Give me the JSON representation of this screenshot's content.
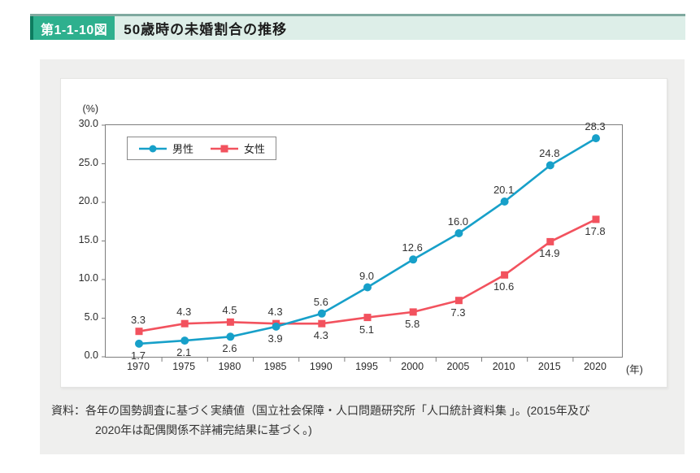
{
  "header": {
    "figure_number": "第1-1-10図",
    "title": "50歳時の未婚割合の推移",
    "badge_color": "#2eb08e",
    "badge_accent_color": "#0d7c60",
    "bar_bg_color": "#ddeee8",
    "bar_top_line_color": "#7fa99f"
  },
  "chart_data": {
    "type": "line",
    "title": "50歳時の未婚割合の推移",
    "y_unit": "(%)",
    "x_unit": "(年)",
    "ylim": [
      0,
      30
    ],
    "grid": false,
    "legend_position": "top-left",
    "y_ticks": [
      "30.0",
      "25.0",
      "20.0",
      "15.0",
      "10.0",
      "5.0",
      "0.0"
    ],
    "categories": [
      "1970",
      "1975",
      "1980",
      "1985",
      "1990",
      "1995",
      "2000",
      "2005",
      "2010",
      "2015",
      "2020"
    ],
    "series": [
      {
        "name": "男性",
        "color": "#17a0c9",
        "marker": "circle",
        "values": [
          1.7,
          2.1,
          2.6,
          3.9,
          5.6,
          9.0,
          12.6,
          16.0,
          20.1,
          24.8,
          28.3
        ],
        "label_pos": [
          "below",
          "below",
          "below",
          "below",
          "above",
          "above",
          "above",
          "above",
          "above",
          "above",
          "above"
        ]
      },
      {
        "name": "女性",
        "color": "#f2525e",
        "marker": "square",
        "values": [
          3.3,
          4.3,
          4.5,
          4.3,
          4.3,
          5.1,
          5.8,
          7.3,
          10.6,
          14.9,
          17.8
        ],
        "label_pos": [
          "above",
          "above",
          "above",
          "above",
          "below",
          "below",
          "below",
          "below",
          "below",
          "below",
          "below"
        ]
      }
    ]
  },
  "footer": {
    "source_line1": "資料：各年の国勢調査に基づく実績値（国立社会保障・人口問題研究所「人口統計資料集 」。(2015年及び",
    "source_line2": "2020年は配偶関係不詳補完結果に基づく。)"
  }
}
